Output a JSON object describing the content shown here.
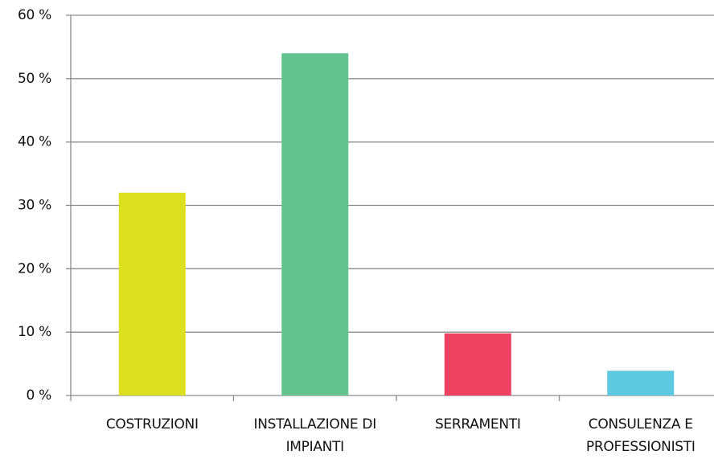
{
  "chart_data": {
    "type": "bar",
    "categories": [
      "COSTRUZIONI",
      "INSTALLAZIONE DI IMPIANTI",
      "SERRAMENTI",
      "CONSULENZA E PROFESSIONISTI"
    ],
    "values": [
      32,
      54,
      9.8,
      3.9
    ],
    "colors": [
      "#dbe021",
      "#63c28d",
      "#ef4161",
      "#5ec8e0"
    ],
    "ylim": [
      0,
      60
    ],
    "yticks": [
      {
        "value": 0,
        "label": "0 %"
      },
      {
        "value": 10,
        "label": "10 %"
      },
      {
        "value": 20,
        "label": "20 %"
      },
      {
        "value": 30,
        "label": "30 %"
      },
      {
        "value": 40,
        "label": "40 %"
      },
      {
        "value": 50,
        "label": "50 %"
      },
      {
        "value": 60,
        "label": "60 %"
      }
    ],
    "grid": true
  }
}
